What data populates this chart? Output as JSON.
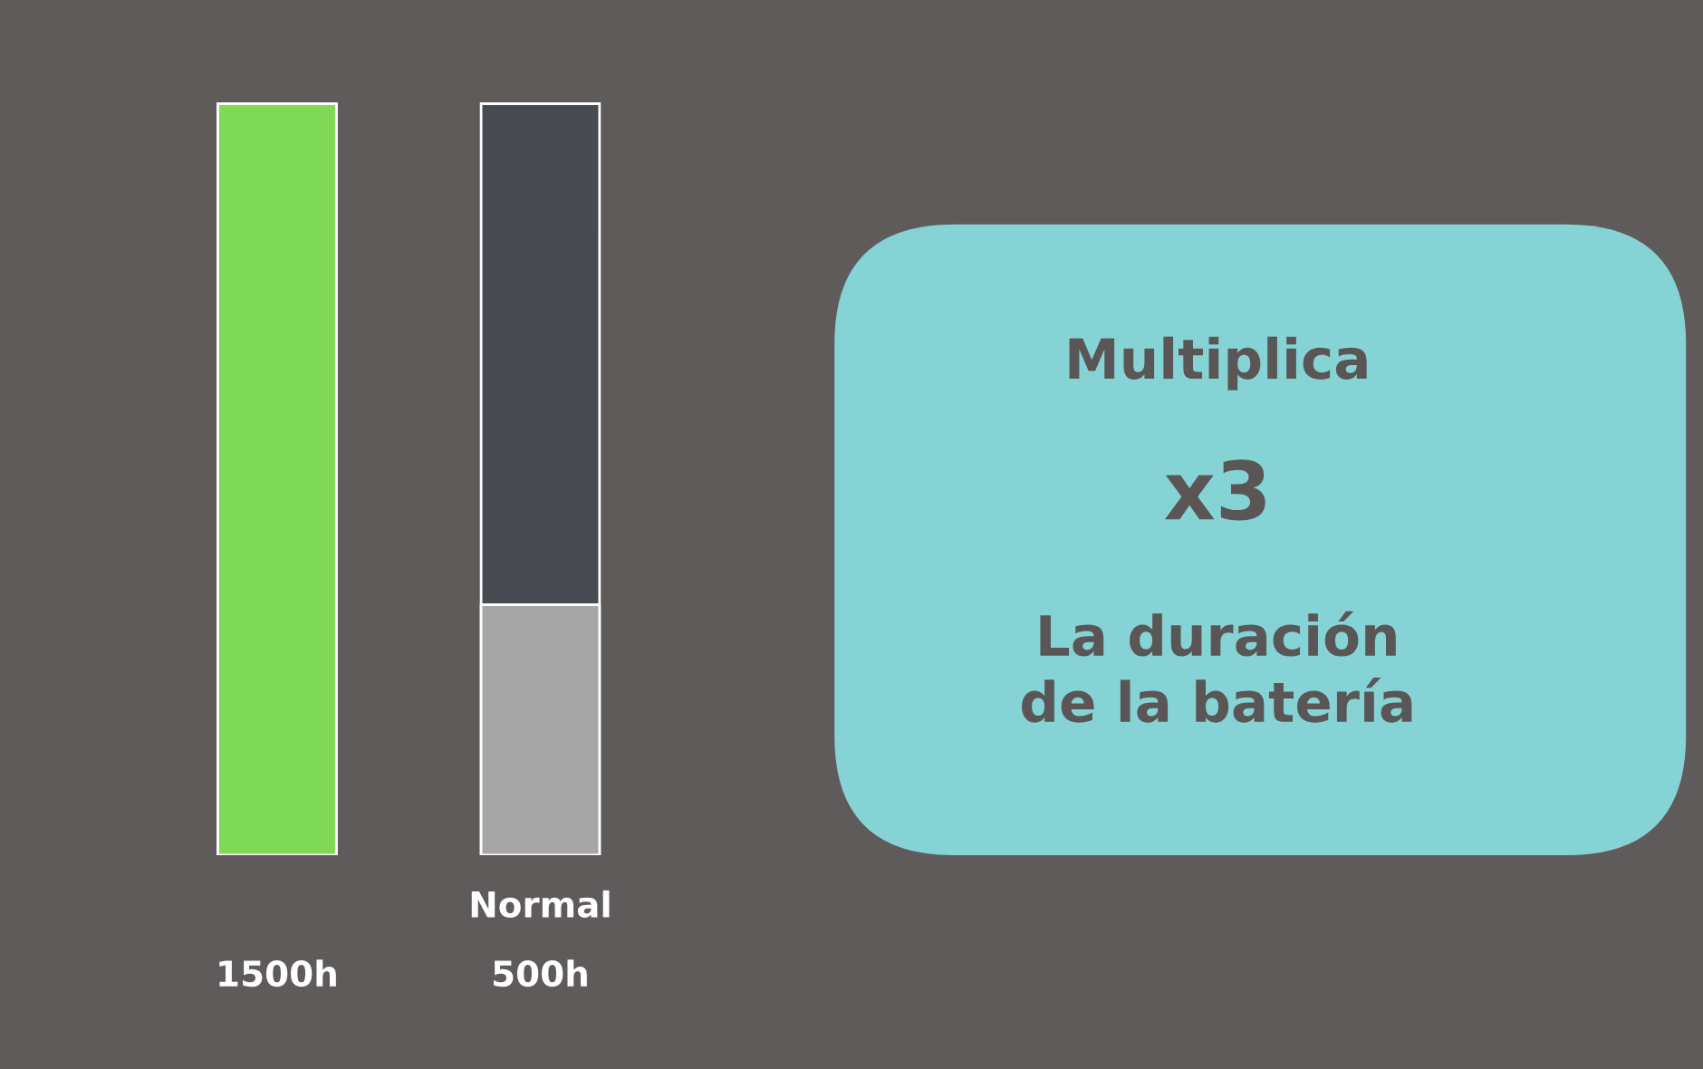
{
  "chart_data": {
    "type": "bar",
    "categories": [
      null,
      "Normal"
    ],
    "values": [
      1500,
      500
    ],
    "colors": [
      "#7ed957",
      "#a6a6a6"
    ],
    "value_labels": [
      "1500h",
      "500h"
    ],
    "annotations": [
      "Multiplica",
      "x3",
      "La duración\nde la batería"
    ]
  }
}
